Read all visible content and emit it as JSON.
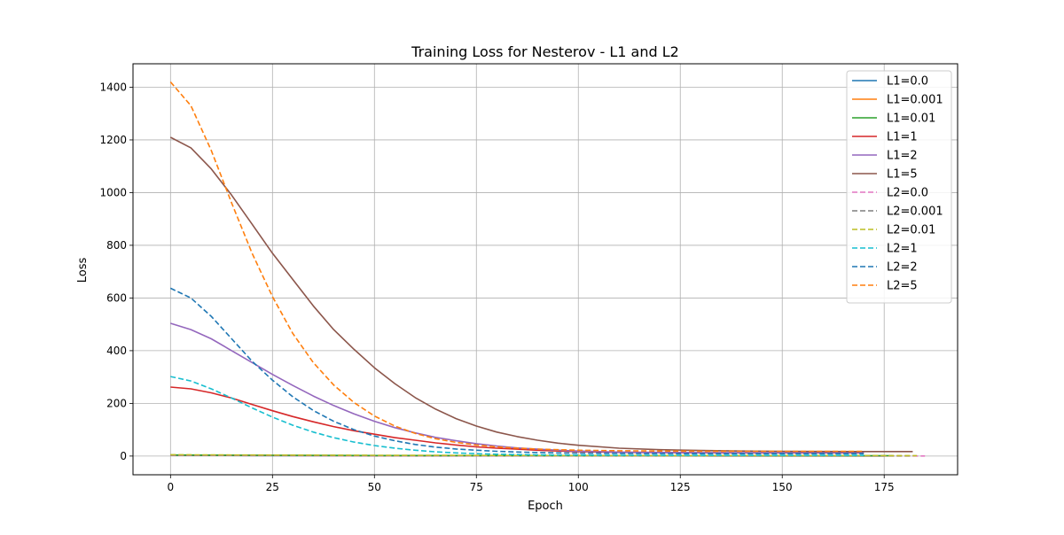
{
  "chart_data": {
    "type": "line",
    "title": "Training Loss for Nesterov - L1 and L2",
    "xlabel": "Epoch",
    "ylabel": "Loss",
    "xlim": [
      -9.2,
      193
    ],
    "ylim": [
      -71,
      1489
    ],
    "xticks": [
      0,
      25,
      50,
      75,
      100,
      125,
      150,
      175
    ],
    "yticks": [
      0,
      200,
      400,
      600,
      800,
      1000,
      1200,
      1400
    ],
    "grid": true,
    "legend": "top-right",
    "series": [
      {
        "name": "L1=0.0",
        "color": "#1f77b4",
        "dash": false,
        "x": [
          0,
          20,
          50,
          100,
          150,
          175
        ],
        "y": [
          3,
          2,
          1,
          0.5,
          0.3,
          0.3
        ]
      },
      {
        "name": "L1=0.001",
        "color": "#ff7f0e",
        "dash": false,
        "x": [
          0,
          20,
          50,
          100,
          150,
          176
        ],
        "y": [
          3.5,
          2.5,
          1.5,
          0.8,
          0.5,
          0.5
        ]
      },
      {
        "name": "L1=0.01",
        "color": "#2ca02c",
        "dash": false,
        "x": [
          0,
          20,
          50,
          100,
          150,
          177
        ],
        "y": [
          4,
          3,
          2,
          1.5,
          1.2,
          1.2
        ]
      },
      {
        "name": "L1=1",
        "color": "#d62728",
        "dash": false,
        "x": [
          0,
          5,
          10,
          15,
          20,
          25,
          30,
          35,
          40,
          45,
          50,
          55,
          60,
          65,
          70,
          75,
          80,
          85,
          90,
          95,
          100,
          110,
          120,
          130,
          140,
          150,
          160,
          170
        ],
        "y": [
          262,
          255,
          240,
          220,
          196,
          172,
          150,
          130,
          112,
          96,
          83,
          70,
          60,
          50,
          42,
          35,
          30,
          26,
          22,
          19,
          17,
          14,
          13,
          12.5,
          12,
          12,
          12,
          12
        ]
      },
      {
        "name": "L1=2",
        "color": "#9467bd",
        "dash": false,
        "x": [
          0,
          5,
          10,
          15,
          20,
          25,
          30,
          35,
          40,
          45,
          50,
          55,
          60,
          65,
          70,
          75,
          80,
          85,
          90,
          95,
          100,
          110,
          120,
          130,
          140,
          150,
          160,
          170
        ],
        "y": [
          504,
          480,
          445,
          400,
          355,
          310,
          268,
          228,
          192,
          160,
          132,
          108,
          88,
          71,
          58,
          47,
          38,
          31,
          26,
          22,
          19,
          15,
          14,
          13,
          13,
          13,
          13,
          13
        ]
      },
      {
        "name": "L1=5",
        "color": "#8c564b",
        "dash": false,
        "x": [
          0,
          5,
          10,
          15,
          20,
          25,
          30,
          35,
          40,
          45,
          50,
          55,
          60,
          65,
          70,
          75,
          80,
          85,
          90,
          95,
          100,
          110,
          120,
          130,
          140,
          150,
          160,
          170,
          182
        ],
        "y": [
          1210,
          1170,
          1090,
          990,
          880,
          770,
          670,
          570,
          480,
          405,
          335,
          275,
          222,
          178,
          142,
          114,
          91,
          74,
          60,
          49,
          41,
          30,
          24,
          21,
          19,
          18,
          17.5,
          17,
          17
        ]
      },
      {
        "name": "L2=0.0",
        "color": "#e377c2",
        "dash": true,
        "x": [
          0,
          20,
          50,
          100,
          150,
          185
        ],
        "y": [
          3,
          2,
          1,
          0.5,
          0.3,
          0.3
        ]
      },
      {
        "name": "L2=0.001",
        "color": "#7f7f7f",
        "dash": true,
        "x": [
          0,
          20,
          50,
          100,
          150,
          182
        ],
        "y": [
          4,
          3,
          2,
          1,
          0.6,
          0.6
        ]
      },
      {
        "name": "L2=0.01",
        "color": "#bcbd22",
        "dash": true,
        "x": [
          0,
          20,
          50,
          100,
          150,
          183
        ],
        "y": [
          5,
          4,
          3,
          2,
          1.5,
          1.5
        ]
      },
      {
        "name": "L2=1",
        "color": "#17becf",
        "dash": true,
        "x": [
          0,
          5,
          10,
          15,
          20,
          25,
          30,
          35,
          40,
          45,
          50,
          55,
          60,
          65,
          70,
          75,
          80,
          85,
          90,
          95,
          100,
          110,
          120,
          130,
          140,
          150,
          160,
          170
        ],
        "y": [
          302,
          285,
          255,
          220,
          183,
          148,
          117,
          91,
          70,
          53,
          40,
          30,
          22,
          16,
          12,
          9,
          7,
          5.5,
          4.5,
          4,
          3.5,
          3,
          2.8,
          2.7,
          2.6,
          2.5,
          2.5,
          2.5
        ]
      },
      {
        "name": "L2=2",
        "color": "#1f77b4",
        "dash": true,
        "x": [
          0,
          5,
          10,
          15,
          20,
          25,
          30,
          35,
          40,
          45,
          50,
          55,
          60,
          65,
          70,
          75,
          80,
          85,
          90,
          95,
          100,
          110,
          120,
          130,
          140,
          150,
          160,
          170
        ],
        "y": [
          637,
          600,
          530,
          445,
          360,
          288,
          225,
          173,
          132,
          100,
          76,
          58,
          44,
          34,
          27,
          22,
          18,
          15.5,
          13.5,
          12,
          11,
          10,
          9.5,
          9,
          9,
          9,
          9,
          9
        ]
      },
      {
        "name": "L2=5",
        "color": "#ff7f0e",
        "dash": true,
        "x": [
          0,
          5,
          10,
          15,
          20,
          25,
          30,
          35,
          40,
          45,
          50,
          55,
          60,
          65,
          70,
          75,
          80,
          85,
          90,
          95,
          100,
          110,
          120,
          130,
          140,
          150,
          160,
          170
        ],
        "y": [
          1420,
          1330,
          1160,
          960,
          770,
          605,
          465,
          355,
          270,
          203,
          152,
          114,
          86,
          66,
          52,
          42,
          35,
          30,
          26.5,
          24,
          22,
          20,
          19,
          18.5,
          18,
          18,
          18,
          18
        ]
      }
    ]
  }
}
